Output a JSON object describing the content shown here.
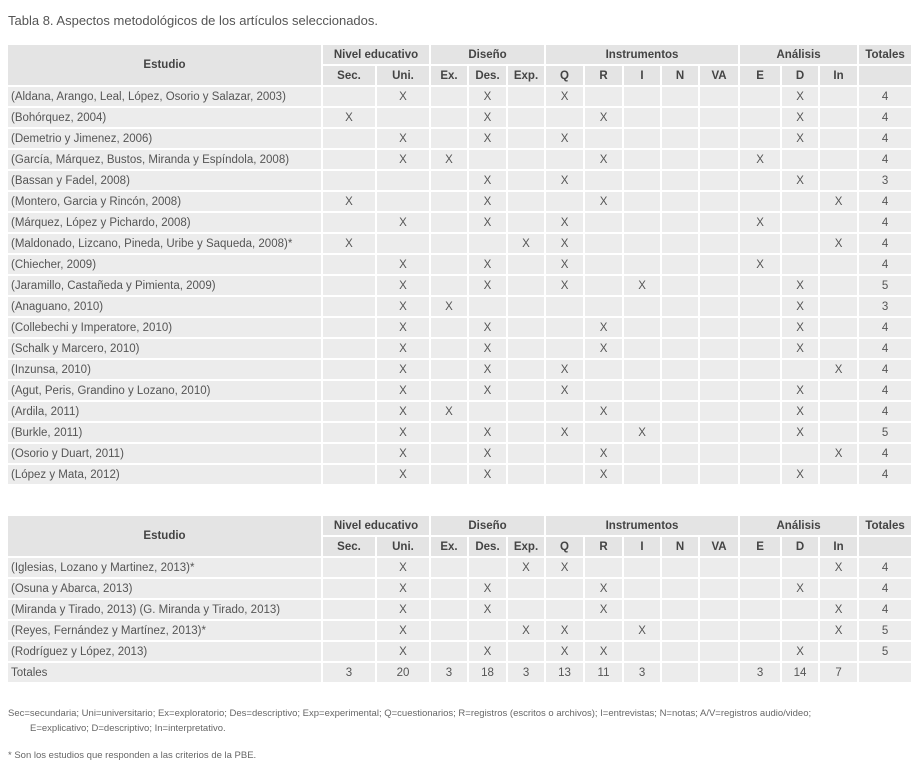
{
  "title": "Tabla 8. Aspectos metodológicos de los artículos seleccionados.",
  "header": {
    "estudio": "Estudio",
    "groups": [
      "Nivel educativo",
      "Diseño",
      "Instrumentos",
      "Análisis",
      "Totales"
    ],
    "subcols": [
      "Sec.",
      "Uni.",
      "Ex.",
      "Des.",
      "Exp.",
      "Q",
      "R",
      "I",
      "N",
      "VA",
      "E",
      "D",
      "In",
      ""
    ]
  },
  "table1": [
    {
      "name": "(Aldana, Arango, Leal, López, Osorio y Salazar, 2003)",
      "cells": [
        "",
        "X",
        "",
        "X",
        "",
        "X",
        "",
        "",
        "",
        "",
        "",
        "X",
        "",
        "4"
      ]
    },
    {
      "name": "(Bohórquez, 2004)",
      "cells": [
        "X",
        "",
        "",
        "X",
        "",
        "",
        "X",
        "",
        "",
        "",
        "",
        "X",
        "",
        "4"
      ]
    },
    {
      "name": "(Demetrio y Jimenez, 2006)",
      "cells": [
        "",
        "X",
        "",
        "X",
        "",
        "X",
        "",
        "",
        "",
        "",
        "",
        "X",
        "",
        "4"
      ]
    },
    {
      "name": "(García, Márquez, Bustos, Miranda y Espíndola, 2008)",
      "cells": [
        "",
        "X",
        "X",
        "",
        "",
        "",
        "X",
        "",
        "",
        "",
        "X",
        "",
        "",
        "4"
      ]
    },
    {
      "name": "(Bassan y Fadel, 2008)",
      "cells": [
        "",
        "",
        "",
        "X",
        "",
        "X",
        "",
        "",
        "",
        "",
        "",
        "X",
        "",
        "3"
      ]
    },
    {
      "name": "(Montero, Garcia y Rincón, 2008)",
      "cells": [
        "X",
        "",
        "",
        "X",
        "",
        "",
        "X",
        "",
        "",
        "",
        "",
        "",
        "X",
        "4"
      ]
    },
    {
      "name": "(Márquez, López y Pichardo, 2008)",
      "cells": [
        "",
        "X",
        "",
        "X",
        "",
        "X",
        "",
        "",
        "",
        "",
        "X",
        "",
        "",
        "4"
      ]
    },
    {
      "name": "(Maldonado, Lizcano, Pineda, Uribe y Saqueda, 2008)*",
      "cells": [
        "X",
        "",
        "",
        "",
        "X",
        "X",
        "",
        "",
        "",
        "",
        "",
        "",
        "X",
        "4"
      ]
    },
    {
      "name": "(Chiecher, 2009)",
      "cells": [
        "",
        "X",
        "",
        "X",
        "",
        "X",
        "",
        "",
        "",
        "",
        "X",
        "",
        "",
        "4"
      ]
    },
    {
      "name": "(Jaramillo, Castañeda y Pimienta, 2009)",
      "cells": [
        "",
        "X",
        "",
        "X",
        "",
        "X",
        "",
        "X",
        "",
        "",
        "",
        "X",
        "",
        "5"
      ]
    },
    {
      "name": "(Anaguano, 2010)",
      "cells": [
        "",
        "X",
        "X",
        "",
        "",
        "",
        "",
        "",
        "",
        "",
        "",
        "X",
        "",
        "3"
      ]
    },
    {
      "name": "(Collebechi y Imperatore, 2010)",
      "cells": [
        "",
        "X",
        "",
        "X",
        "",
        "",
        "X",
        "",
        "",
        "",
        "",
        "X",
        "",
        "4"
      ]
    },
    {
      "name": "(Schalk y Marcero, 2010)",
      "cells": [
        "",
        "X",
        "",
        "X",
        "",
        "",
        "X",
        "",
        "",
        "",
        "",
        "X",
        "",
        "4"
      ]
    },
    {
      "name": "(Inzunsa, 2010)",
      "cells": [
        "",
        "X",
        "",
        "X",
        "",
        "X",
        "",
        "",
        "",
        "",
        "",
        "",
        "X",
        "4"
      ]
    },
    {
      "name": "(Agut, Peris, Grandino y Lozano, 2010)",
      "cells": [
        "",
        "X",
        "",
        "X",
        "",
        "X",
        "",
        "",
        "",
        "",
        "",
        "X",
        "",
        "4"
      ]
    },
    {
      "name": "(Ardila, 2011)",
      "cells": [
        "",
        "X",
        "X",
        "",
        "",
        "",
        "X",
        "",
        "",
        "",
        "",
        "X",
        "",
        "4"
      ]
    },
    {
      "name": "(Burkle, 2011)",
      "cells": [
        "",
        "X",
        "",
        "X",
        "",
        "X",
        "",
        "X",
        "",
        "",
        "",
        "X",
        "",
        "5"
      ]
    },
    {
      "name": "(Osorio y Duart, 2011)",
      "cells": [
        "",
        "X",
        "",
        "X",
        "",
        "",
        "X",
        "",
        "",
        "",
        "",
        "",
        "X",
        "4"
      ]
    },
    {
      "name": "(López y Mata, 2012)",
      "cells": [
        "",
        "X",
        "",
        "X",
        "",
        "",
        "X",
        "",
        "",
        "",
        "",
        "X",
        "",
        "4"
      ]
    }
  ],
  "table2": [
    {
      "name": "(Iglesias, Lozano y Martinez, 2013)*",
      "cells": [
        "",
        "X",
        "",
        "",
        "X",
        "X",
        "",
        "",
        "",
        "",
        "",
        "",
        "X",
        "4"
      ]
    },
    {
      "name": "(Osuna y Abarca, 2013)",
      "cells": [
        "",
        "X",
        "",
        "X",
        "",
        "",
        "X",
        "",
        "",
        "",
        "",
        "X",
        "",
        "4"
      ]
    },
    {
      "name": "(Miranda y Tirado, 2013) (G. Miranda y Tirado, 2013)",
      "cells": [
        "",
        "X",
        "",
        "X",
        "",
        "",
        "X",
        "",
        "",
        "",
        "",
        "",
        "X",
        "4"
      ]
    },
    {
      "name": "(Reyes, Fernández y Martínez, 2013)*",
      "cells": [
        "",
        "X",
        "",
        "",
        "X",
        "X",
        "",
        "X",
        "",
        "",
        "",
        "",
        "X",
        "5"
      ]
    },
    {
      "name": "(Rodríguez y López, 2013)",
      "cells": [
        "",
        "X",
        "",
        "X",
        "",
        "X",
        "X",
        "",
        "",
        "",
        "",
        "X",
        "",
        "5"
      ]
    },
    {
      "name": "Totales",
      "cells": [
        "3",
        "20",
        "3",
        "18",
        "3",
        "13",
        "11",
        "3",
        "",
        "",
        "3",
        "14",
        "7",
        ""
      ]
    }
  ],
  "notes": {
    "line1": "Sec=secundaria; Uni=universitario; Ex=exploratorio; Des=descriptivo; Exp=experimental; Q=cuestionarios; R=registros (escritos o archivos); I=entrevistas; N=notas; A/V=registros audio/video;",
    "line2": "E=explicativo; D=descriptivo; In=interpretativo.",
    "footnote": "* Son los estudios que responden a las criterios de la PBE."
  }
}
